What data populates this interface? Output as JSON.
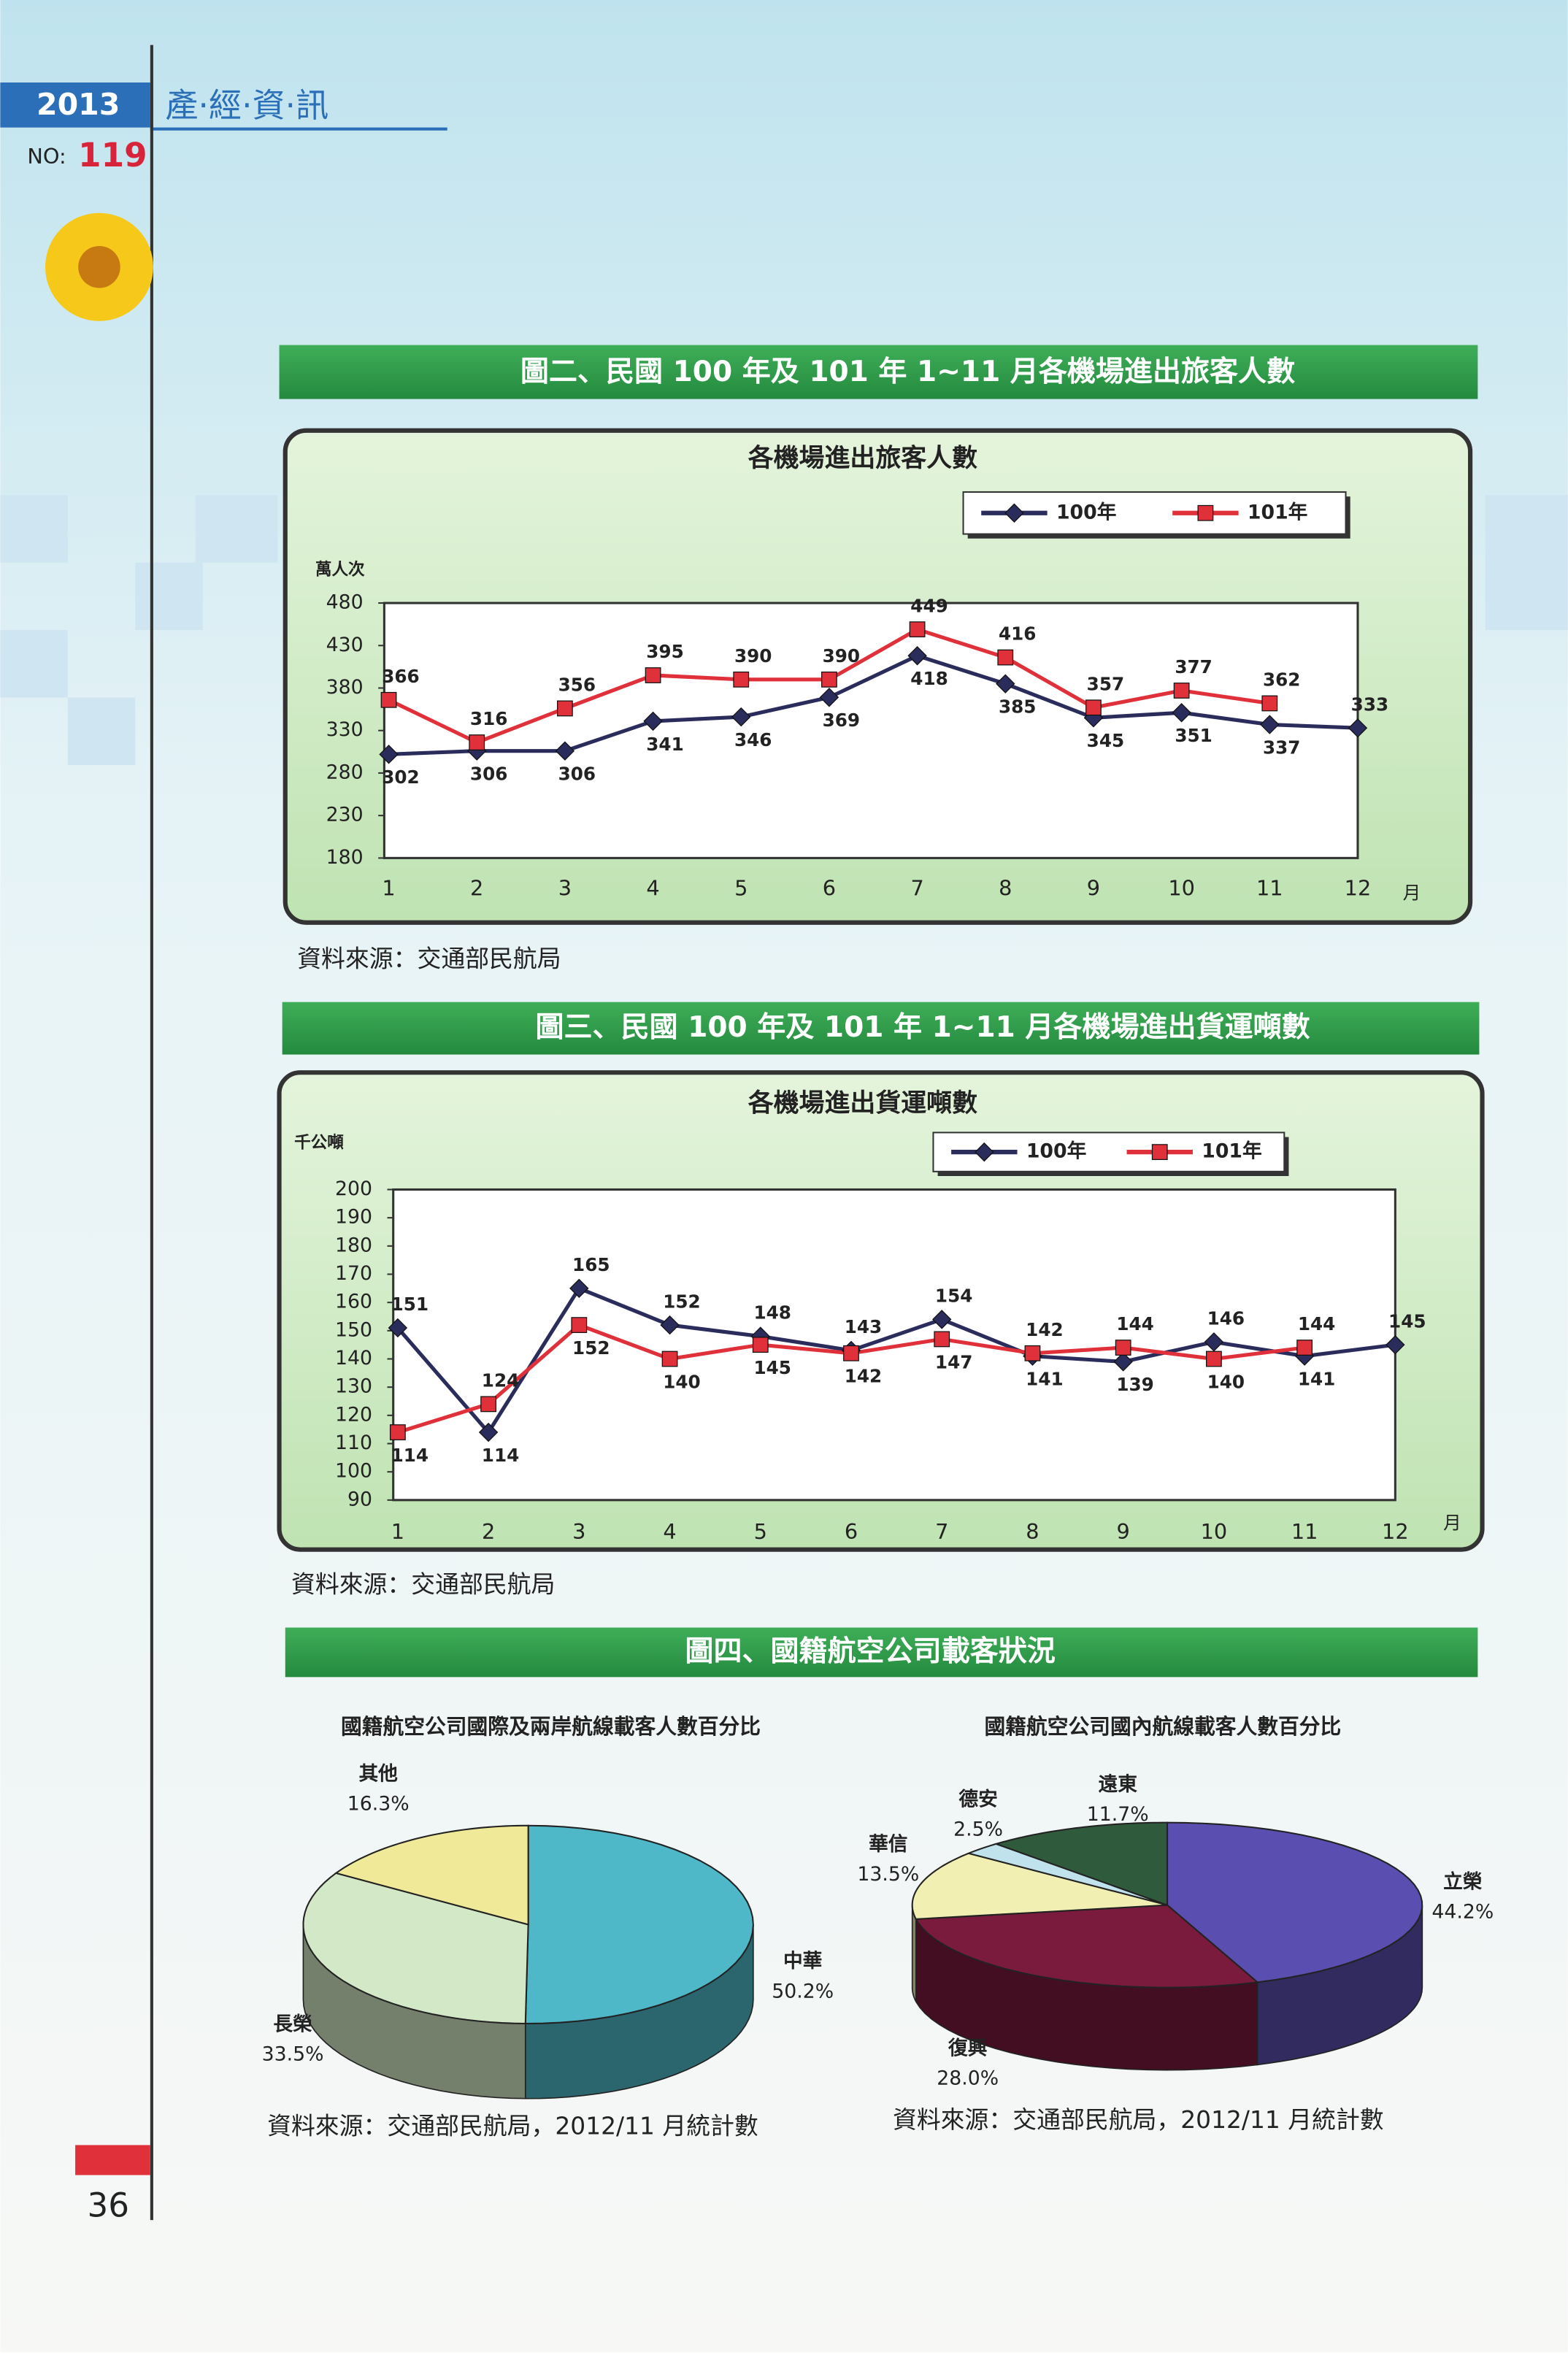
{
  "header": {
    "year": "2013",
    "title": "產·經·資·訊",
    "issue_label": "NO:",
    "issue_number": "119"
  },
  "page_number": "36",
  "figures": [
    {
      "caption": "圖二、民國 100 年及 101 年 1~11 月各機場進出旅客人數",
      "source": "資料來源：交通部民航局"
    },
    {
      "caption": "圖三、民國 100 年及 101 年 1~11 月各機場進出貨運噸數",
      "source": "資料來源：交通部民航局"
    },
    {
      "caption": "圖四、國籍航空公司載客狀況",
      "sources": [
        "資料來源：交通部民航局，2012/11 月統計數",
        "資料來源：交通部民航局，2012/11 月統計數"
      ]
    }
  ],
  "chart_data": [
    {
      "type": "line",
      "title": "各機場進出旅客人數",
      "y_label": "萬人次",
      "x_unit": "月",
      "categories": [
        "1",
        "2",
        "3",
        "4",
        "5",
        "6",
        "7",
        "8",
        "9",
        "10",
        "11",
        "12"
      ],
      "series": [
        {
          "name": "100年",
          "color": "#2a2d5c",
          "marker": "diamond",
          "values": [
            302,
            306,
            306,
            341,
            346,
            369,
            418,
            385,
            345,
            351,
            337,
            333
          ]
        },
        {
          "name": "101年",
          "color": "#e0303a",
          "marker": "square",
          "values": [
            366,
            316,
            356,
            395,
            390,
            390,
            449,
            416,
            357,
            377,
            362,
            null
          ]
        }
      ],
      "ylim": [
        180,
        480
      ],
      "yticks": [
        180,
        230,
        280,
        330,
        380,
        430,
        480
      ],
      "legend": "top-right"
    },
    {
      "type": "line",
      "title": "各機場進出貨運噸數",
      "y_label": "千公噸",
      "x_unit": "月",
      "categories": [
        "1",
        "2",
        "3",
        "4",
        "5",
        "6",
        "7",
        "8",
        "9",
        "10",
        "11",
        "12"
      ],
      "series": [
        {
          "name": "100年",
          "color": "#2a2d5c",
          "marker": "diamond",
          "values": [
            151,
            114,
            165,
            152,
            148,
            143,
            154,
            141,
            139,
            146,
            141,
            145
          ]
        },
        {
          "name": "101年",
          "color": "#e0303a",
          "marker": "square",
          "values": [
            114,
            124,
            152,
            140,
            145,
            142,
            147,
            142,
            144,
            140,
            144,
            null
          ]
        }
      ],
      "ylim": [
        90,
        200
      ],
      "yticks": [
        90,
        100,
        110,
        120,
        130,
        140,
        150,
        160,
        170,
        180,
        190,
        200
      ],
      "legend": "top-right"
    },
    {
      "type": "pie",
      "title": "國籍航空公司國際及兩岸航線載客人數百分比",
      "categories": [
        "中華",
        "長榮",
        "其他"
      ],
      "values": [
        50.2,
        33.5,
        16.3
      ],
      "value_labels": [
        "50.2%",
        "33.5%",
        "16.3%"
      ],
      "colors": [
        "#4fb8c8",
        "#d3e8c6",
        "#f0ea98"
      ]
    },
    {
      "type": "pie",
      "title": "國籍航空公司國內航線載客人數百分比",
      "categories": [
        "立榮",
        "復興",
        "華信",
        "德安",
        "遠東"
      ],
      "values": [
        44.2,
        28,
        13.5,
        2.5,
        11.7
      ],
      "value_labels": [
        "44.2%",
        "28.0%",
        "13.5%",
        "2.5%",
        "11.7%"
      ],
      "colors": [
        "#5a4fb0",
        "#7a1a3c",
        "#f2efb2",
        "#c0e2ec",
        "#2f5a3c"
      ]
    }
  ]
}
